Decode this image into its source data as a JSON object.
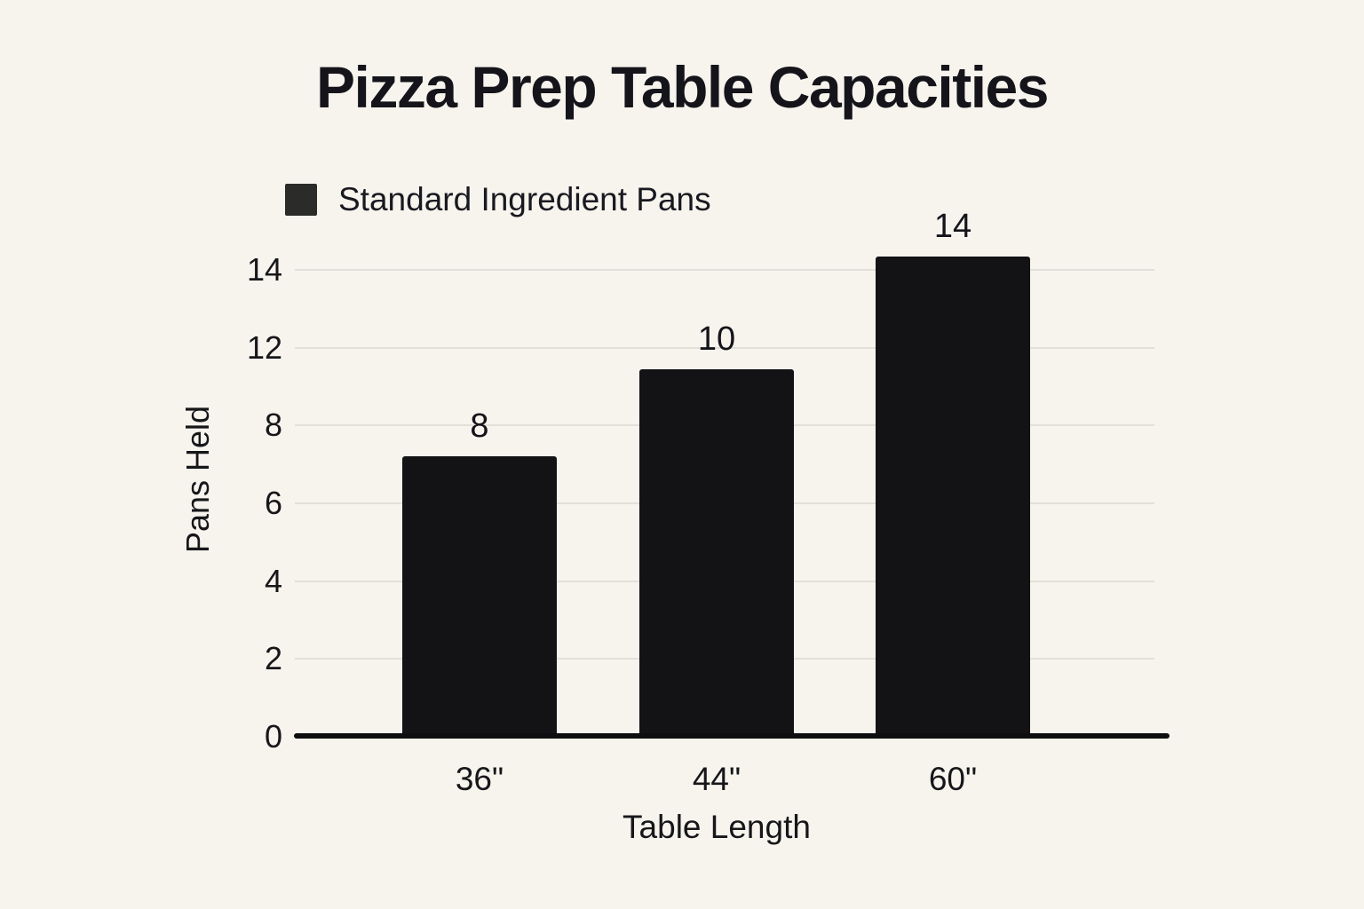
{
  "chart_data": {
    "type": "bar",
    "title": "Pizza Prep Table Capacities",
    "categories": [
      "36\"",
      "44\"",
      "60\""
    ],
    "series": [
      {
        "name": "Standard Ingredient Pans",
        "values": [
          8,
          10,
          14
        ]
      }
    ],
    "data_labels": [
      "8",
      "10",
      "14"
    ],
    "xlabel": "Table Length",
    "ylabel": "Pans Held",
    "y_tick_labels_bottom_to_top": [
      "0",
      "2",
      "4",
      "6",
      "8",
      "12",
      "14"
    ],
    "ylim": [
      0,
      14
    ],
    "grid": "horizontal gridlines on, evenly spaced, label 10 skipped",
    "legend_position": "top-left above plot",
    "rendered_bar_heights_axis_units": [
      7.2,
      9.45,
      12.35
    ],
    "colors": {
      "bar": "#131316",
      "legend_swatch": "#2b2b29",
      "background": "#f7f4ee",
      "gridline": "#e3e0d9",
      "axis_line": "#0e0e10",
      "text": "#17171a"
    }
  }
}
